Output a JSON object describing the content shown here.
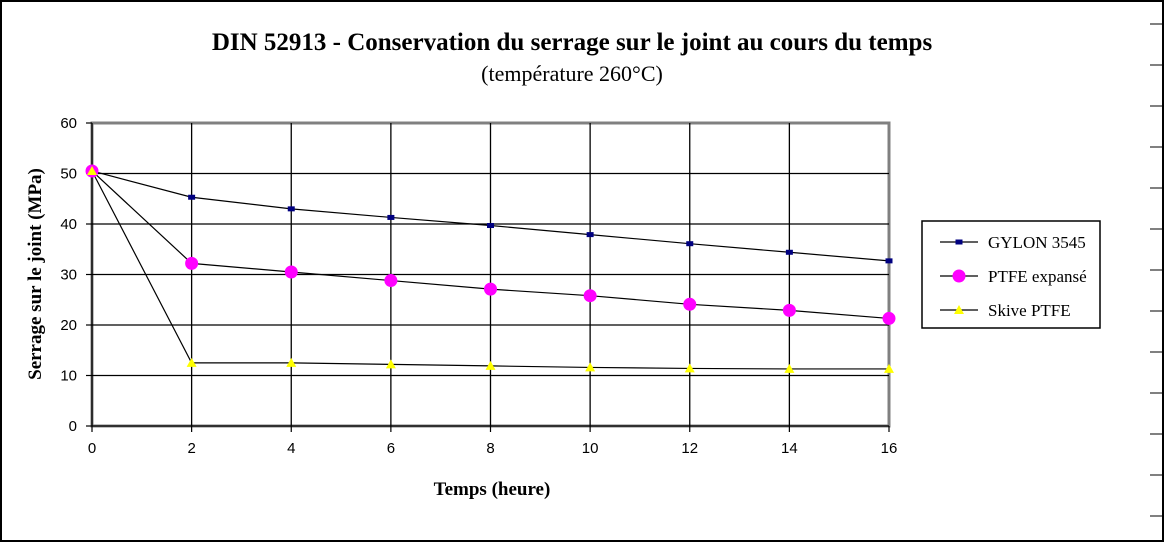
{
  "chart_data": {
    "type": "line",
    "title": "DIN 52913 - Conservation du serrage sur le joint au cours du temps",
    "subtitle": "(température 260°C)",
    "xlabel": "Temps (heure)",
    "ylabel": "Serrage sur le joint (MPa)",
    "xlim": [
      0,
      16
    ],
    "ylim": [
      0,
      60
    ],
    "x_ticks": [
      0,
      2,
      4,
      6,
      8,
      10,
      12,
      14,
      16
    ],
    "y_ticks": [
      0,
      10,
      20,
      30,
      40,
      50,
      60
    ],
    "grid": true,
    "legend_position": "right",
    "x": [
      0,
      2,
      4,
      6,
      8,
      10,
      12,
      14,
      16
    ],
    "series": [
      {
        "name": "GYLON 3545",
        "values": [
          50.5,
          45.3,
          43.0,
          41.3,
          39.7,
          37.9,
          36.1,
          34.4,
          32.7
        ],
        "color": "#000080",
        "marker": "square"
      },
      {
        "name": "PTFE expansé",
        "values": [
          50.5,
          32.2,
          30.5,
          28.8,
          27.1,
          25.8,
          24.1,
          22.9,
          21.3
        ],
        "color": "#ff00ff",
        "marker": "circle"
      },
      {
        "name": "Skive PTFE",
        "values": [
          50.5,
          12.5,
          12.5,
          12.2,
          11.9,
          11.6,
          11.4,
          11.3,
          11.3
        ],
        "color": "#ffff00",
        "marker": "triangle"
      }
    ]
  }
}
